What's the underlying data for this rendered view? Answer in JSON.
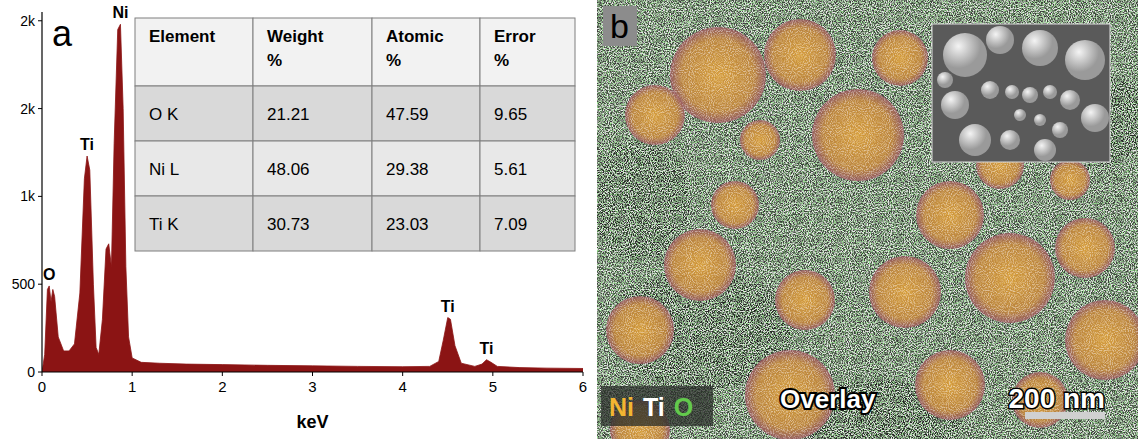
{
  "chart_data": {
    "type": "area",
    "panel_label": "a",
    "x_label": "keV",
    "color": "#8b1414",
    "x": [
      0,
      0.03,
      0.06,
      0.08,
      0.1,
      0.12,
      0.14,
      0.18,
      0.24,
      0.3,
      0.36,
      0.42,
      0.47,
      0.5,
      0.53,
      0.57,
      0.6,
      0.63,
      0.67,
      0.71,
      0.74,
      0.77,
      0.8,
      0.84,
      0.87,
      0.9,
      0.93,
      0.96,
      1.0,
      1.1,
      1.3,
      1.6,
      2.0,
      2.5,
      3.0,
      3.5,
      4.0,
      4.3,
      4.4,
      4.45,
      4.5,
      4.53,
      4.58,
      4.65,
      4.8,
      4.88,
      4.93,
      4.98,
      5.05,
      5.3,
      5.6,
      6.0
    ],
    "values": [
      0,
      100,
      470,
      490,
      400,
      470,
      430,
      200,
      120,
      120,
      160,
      450,
      1100,
      1230,
      1150,
      500,
      140,
      100,
      300,
      700,
      730,
      600,
      1300,
      1950,
      1980,
      1500,
      600,
      200,
      80,
      55,
      50,
      45,
      42,
      38,
      35,
      32,
      30,
      32,
      60,
      180,
      310,
      300,
      150,
      50,
      32,
      45,
      70,
      55,
      32,
      25,
      22,
      20
    ],
    "xlim": [
      0,
      6
    ],
    "xticks": [
      0,
      1,
      2,
      3,
      4,
      5,
      6
    ],
    "ylim": [
      0,
      2050
    ],
    "yticks": [
      0,
      500,
      {
        "value": 1000,
        "label": "1k"
      },
      {
        "value": 1500,
        "label": "2k"
      },
      {
        "value": 2000,
        "label": "2k"
      }
    ],
    "annotations": [
      {
        "text": "O",
        "x": 0.08,
        "y": 490
      },
      {
        "text": "Ti",
        "x": 0.5,
        "y": 1230
      },
      {
        "text": "Ni",
        "x": 0.87,
        "y": 1980
      },
      {
        "text": "Ti",
        "x": 4.5,
        "y": 310
      },
      {
        "text": "Ti",
        "x": 4.93,
        "y": 70
      }
    ],
    "table": {
      "columns": [
        "Element",
        "Weight %",
        "Atomic %",
        "Error %"
      ],
      "rows": [
        [
          "O K",
          "21.21",
          "47.59",
          "9.65"
        ],
        [
          "Ni L",
          "48.06",
          "29.38",
          "5.61"
        ],
        [
          "Ti K",
          "30.73",
          "23.03",
          "7.09"
        ]
      ]
    }
  },
  "map_panel": {
    "panel_label": "b",
    "elements": [
      {
        "text": "Ni",
        "color": "#f2b531"
      },
      {
        "text": "Ti",
        "color": "#ffffff"
      },
      {
        "text": "O",
        "color": "#63c94c"
      }
    ],
    "label": "Overlay",
    "scale_bar": "200 nm"
  }
}
